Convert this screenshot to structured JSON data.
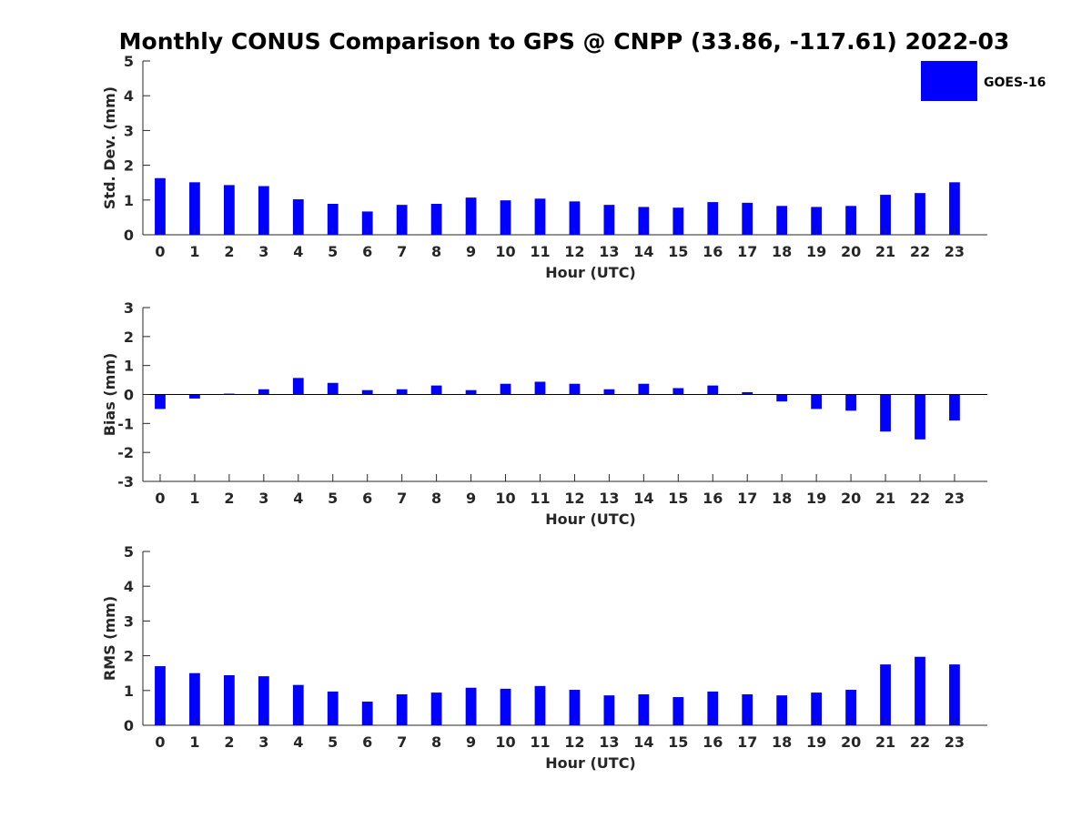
{
  "title": "Monthly CONUS Comparison to GPS @ CNPP (33.86, -117.61) 2022-03",
  "legend": {
    "label": "GOES-16",
    "color": "#0000ff",
    "placement": "top-right"
  },
  "chart_data": [
    {
      "type": "bar",
      "categories": [
        "0",
        "1",
        "2",
        "3",
        "4",
        "5",
        "6",
        "7",
        "8",
        "9",
        "10",
        "11",
        "12",
        "13",
        "14",
        "15",
        "16",
        "17",
        "18",
        "19",
        "20",
        "21",
        "22",
        "23"
      ],
      "series": [
        {
          "name": "GOES-16",
          "values": [
            1.63,
            1.51,
            1.43,
            1.4,
            1.02,
            0.89,
            0.67,
            0.86,
            0.89,
            1.07,
            0.99,
            1.04,
            0.96,
            0.86,
            0.8,
            0.78,
            0.94,
            0.92,
            0.83,
            0.8,
            0.83,
            1.15,
            1.2,
            1.51
          ],
          "color": "#0000ff"
        }
      ],
      "xlabel": "Hour (UTC)",
      "ylabel": "Std. Dev. (mm)",
      "ylim": [
        0,
        5
      ],
      "yticks": [
        "0",
        "1",
        "2",
        "3",
        "4",
        "5"
      ],
      "grid": false
    },
    {
      "type": "bar",
      "categories": [
        "0",
        "1",
        "2",
        "3",
        "4",
        "5",
        "6",
        "7",
        "8",
        "9",
        "10",
        "11",
        "12",
        "13",
        "14",
        "15",
        "16",
        "17",
        "18",
        "19",
        "20",
        "21",
        "22",
        "23"
      ],
      "series": [
        {
          "name": "GOES-16",
          "values": [
            -0.5,
            -0.14,
            0.03,
            0.18,
            0.57,
            0.4,
            0.15,
            0.18,
            0.31,
            0.15,
            0.37,
            0.44,
            0.37,
            0.18,
            0.37,
            0.22,
            0.31,
            0.08,
            -0.24,
            -0.5,
            -0.56,
            -1.28,
            -1.55,
            -0.9
          ],
          "color": "#0000ff"
        }
      ],
      "xlabel": "Hour (UTC)",
      "ylabel": "Bias (mm)",
      "ylim": [
        -3,
        3
      ],
      "yticks": [
        "-3",
        "-2",
        "-1",
        "0",
        "1",
        "2",
        "3"
      ],
      "grid": false
    },
    {
      "type": "bar",
      "categories": [
        "0",
        "1",
        "2",
        "3",
        "4",
        "5",
        "6",
        "7",
        "8",
        "9",
        "10",
        "11",
        "12",
        "13",
        "14",
        "15",
        "16",
        "17",
        "18",
        "19",
        "20",
        "21",
        "22",
        "23"
      ],
      "series": [
        {
          "name": "GOES-16",
          "values": [
            1.7,
            1.5,
            1.44,
            1.41,
            1.16,
            0.97,
            0.68,
            0.89,
            0.94,
            1.08,
            1.05,
            1.13,
            1.02,
            0.86,
            0.89,
            0.81,
            0.97,
            0.89,
            0.86,
            0.94,
            1.02,
            1.75,
            1.97,
            1.75
          ],
          "color": "#0000ff"
        }
      ],
      "xlabel": "Hour (UTC)",
      "ylabel": "RMS (mm)",
      "ylim": [
        0,
        5
      ],
      "yticks": [
        "0",
        "1",
        "2",
        "3",
        "4",
        "5"
      ],
      "grid": false
    }
  ]
}
